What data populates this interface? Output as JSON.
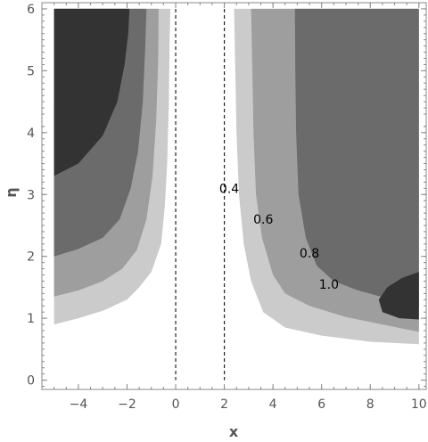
{
  "chart_data": {
    "type": "contour",
    "xlabel": "x",
    "ylabel": "η",
    "xlim": [
      -5.5,
      10.3
    ],
    "ylim": [
      -0.15,
      6.1
    ],
    "frame": {
      "x_ticks": [
        -4,
        -2,
        0,
        2,
        4,
        6,
        8,
        10
      ],
      "y_ticks": [
        0,
        1,
        2,
        3,
        4,
        5,
        6
      ]
    },
    "x_tick_labels": [
      "−4",
      "−2",
      "0",
      "2",
      "4",
      "6",
      "8",
      "10"
    ],
    "y_tick_labels": [
      "0",
      "1",
      "2",
      "3",
      "4",
      "5",
      "6"
    ],
    "data_xrange": [
      -5,
      10
    ],
    "data_yrange": [
      0,
      6
    ],
    "dashed_lines_x": [
      0,
      2
    ],
    "colors": {
      "background": "#ffffff",
      "frame": "#888888",
      "dashed": "#222222",
      "levels": [
        "#cbcbcb",
        "#9e9e9e",
        "#6b6b6b",
        "#333333"
      ]
    },
    "contour_levels": [
      0.4,
      0.6,
      0.8,
      1.0
    ],
    "contour_labels": [
      {
        "text": "0.4",
        "x": 2.2,
        "y": 3.1
      },
      {
        "text": "0.6",
        "x": 3.6,
        "y": 2.6
      },
      {
        "text": "0.8",
        "x": 5.5,
        "y": 2.05
      },
      {
        "text": "1.0",
        "x": 6.3,
        "y": 1.55
      }
    ],
    "regions": [
      {
        "level": 0.4,
        "polygons": [
          [
            [
              -5,
              0.9
            ],
            [
              -4,
              1.0
            ],
            [
              -3,
              1.12
            ],
            [
              -2,
              1.3
            ],
            [
              -1.5,
              1.5
            ],
            [
              -1,
              1.75
            ],
            [
              -0.6,
              2.2
            ],
            [
              -0.45,
              2.8
            ],
            [
              -0.35,
              3.5
            ],
            [
              -0.28,
              4.5
            ],
            [
              -0.25,
              5.5
            ],
            [
              -0.22,
              6
            ],
            [
              -5,
              6
            ]
          ],
          [
            [
              2.4,
              6
            ],
            [
              2.45,
              5
            ],
            [
              2.5,
              4
            ],
            [
              2.6,
              3
            ],
            [
              2.8,
              2.2
            ],
            [
              3.1,
              1.6
            ],
            [
              3.6,
              1.1
            ],
            [
              4.5,
              0.85
            ],
            [
              6,
              0.72
            ],
            [
              8,
              0.62
            ],
            [
              10,
              0.58
            ],
            [
              10,
              6
            ]
          ]
        ]
      },
      {
        "level": 0.6,
        "polygons": [
          [
            [
              -5,
              1.35
            ],
            [
              -4,
              1.45
            ],
            [
              -3,
              1.6
            ],
            [
              -2.2,
              1.8
            ],
            [
              -1.6,
              2.1
            ],
            [
              -1.2,
              2.6
            ],
            [
              -0.95,
              3.3
            ],
            [
              -0.8,
              4.2
            ],
            [
              -0.72,
              5.2
            ],
            [
              -0.7,
              6
            ],
            [
              -5,
              6
            ]
          ],
          [
            [
              3.1,
              6
            ],
            [
              3.15,
              5
            ],
            [
              3.2,
              4
            ],
            [
              3.3,
              3
            ],
            [
              3.55,
              2.3
            ],
            [
              4,
              1.7
            ],
            [
              4.5,
              1.4
            ],
            [
              5.5,
              1.2
            ],
            [
              7,
              1.02
            ],
            [
              8.5,
              0.9
            ],
            [
              10,
              0.78
            ],
            [
              10,
              6
            ]
          ]
        ]
      },
      {
        "level": 0.8,
        "polygons": [
          [
            [
              -5,
              2.0
            ],
            [
              -4,
              2.12
            ],
            [
              -3,
              2.3
            ],
            [
              -2.3,
              2.6
            ],
            [
              -1.85,
              3.1
            ],
            [
              -1.55,
              3.7
            ],
            [
              -1.35,
              4.5
            ],
            [
              -1.25,
              5.4
            ],
            [
              -1.2,
              6
            ],
            [
              -5,
              6
            ]
          ],
          [
            [
              4.9,
              6
            ],
            [
              4.92,
              5
            ],
            [
              4.95,
              4
            ],
            [
              5.05,
              3
            ],
            [
              5.35,
              2.3
            ],
            [
              5.8,
              1.85
            ],
            [
              6.5,
              1.6
            ],
            [
              7.5,
              1.45
            ],
            [
              8.7,
              1.32
            ],
            [
              10,
              1.2
            ],
            [
              10,
              6
            ]
          ]
        ]
      },
      {
        "level": 1.0,
        "polygons": [
          [
            [
              -5,
              3.3
            ],
            [
              -4,
              3.5
            ],
            [
              -3,
              3.95
            ],
            [
              -2.4,
              4.5
            ],
            [
              -2.1,
              5.1
            ],
            [
              -1.95,
              5.6
            ],
            [
              -1.9,
              6
            ],
            [
              -5,
              6
            ]
          ],
          [
            [
              10,
              1.75
            ],
            [
              9.3,
              1.65
            ],
            [
              8.7,
              1.5
            ],
            [
              8.35,
              1.3
            ],
            [
              8.5,
              1.1
            ],
            [
              9.2,
              1.0
            ],
            [
              10,
              0.98
            ]
          ]
        ]
      }
    ]
  }
}
